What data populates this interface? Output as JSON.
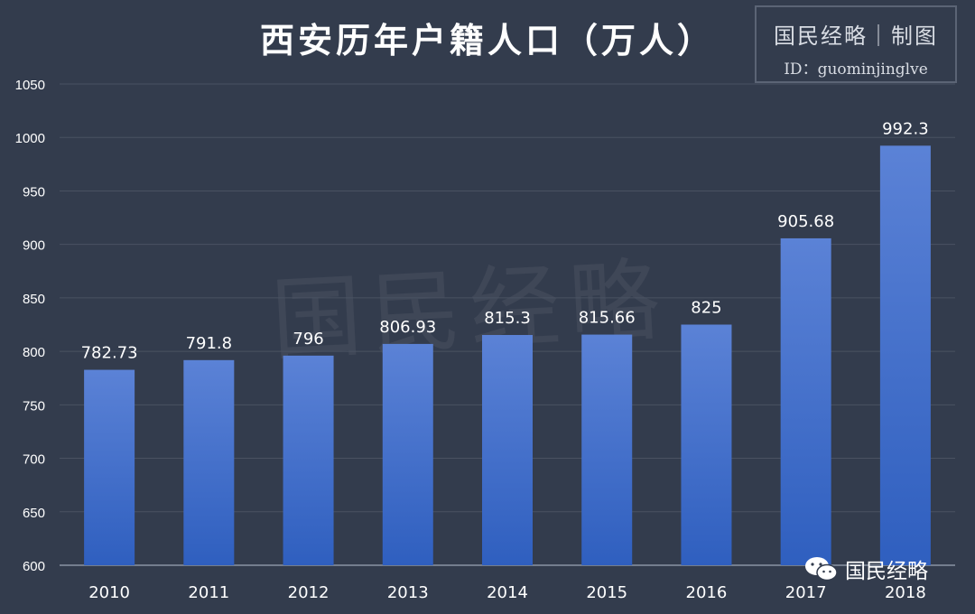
{
  "title": "西安历年户籍人口（万人）",
  "stamp": {
    "brand": "国民经略｜制图",
    "handle": "ID：guominjinglve"
  },
  "watermark": "国民经略",
  "footer_logo": {
    "icon": "wechat-icon",
    "text": "国民经略"
  },
  "colors": {
    "background": "#333c4d",
    "bar_top": "#5b82d6",
    "bar_bottom": "#2f5fbf",
    "grid": "#4a5262",
    "text": "#ffffff"
  },
  "chart_data": {
    "type": "bar",
    "categories": [
      "2010",
      "2011",
      "2012",
      "2013",
      "2014",
      "2015",
      "2016",
      "2017",
      "2018"
    ],
    "values": [
      782.73,
      791.8,
      796,
      806.93,
      815.3,
      815.66,
      825,
      905.68,
      992.3
    ],
    "labels": [
      "782.73",
      "791.8",
      "796",
      "806.93",
      "815.3",
      "815.66",
      "825",
      "905.68",
      "992.3"
    ],
    "title": "西安历年户籍人口（万人）",
    "xlabel": "",
    "ylabel": "",
    "ylim": [
      600,
      1050
    ],
    "yticks": [
      600,
      650,
      700,
      750,
      800,
      850,
      900,
      950,
      1000,
      1050
    ],
    "grid": true,
    "legend": "none"
  }
}
